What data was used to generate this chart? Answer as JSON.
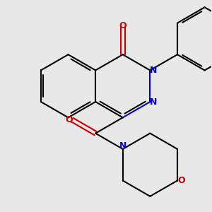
{
  "background_color": "#e8e8e8",
  "bond_color": "#000000",
  "nitrogen_color": "#0000cc",
  "oxygen_color": "#cc0000",
  "bond_width": 1.5,
  "figsize": [
    3.0,
    3.0
  ],
  "dpi": 100,
  "xlim": [
    0,
    10
  ],
  "ylim": [
    0,
    10
  ]
}
